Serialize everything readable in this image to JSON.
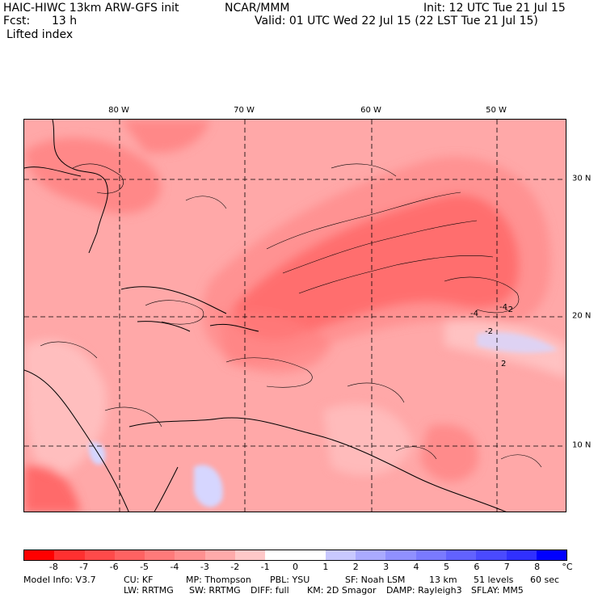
{
  "header": {
    "model": "HAIC-HIWC 13km ARW-GFS init",
    "org": "NCAR/MMM",
    "init": "Init: 12 UTC Tue 21 Jul 15",
    "fcst_label": "Fcst:",
    "fcst_value": "13 h",
    "valid": "Valid: 01 UTC Wed 22 Jul 15 (22 LST Tue 21 Jul 15)",
    "field": "Lifted index"
  },
  "map": {
    "lon_labels": [
      "80 W",
      "70 W",
      "60 W",
      "50 W"
    ],
    "lat_labels": [
      "30 N",
      "20 N",
      "10 N"
    ],
    "contour_labels": [
      "-4",
      "-2",
      "-2",
      "-4",
      "2"
    ],
    "colors": {
      "background": "#ffa8a8",
      "strong": "#ff5a5a",
      "moderate": "#ff7f7f",
      "weak": "#ffc8c8",
      "positive": "#d6d6ff",
      "neutral": "#ffffff"
    }
  },
  "colorbar": {
    "unit": "°C",
    "ticks": [
      "-8",
      "-7",
      "-6",
      "-5",
      "-4",
      "-3",
      "-2",
      "-1",
      "0",
      "1",
      "2",
      "3",
      "4",
      "5",
      "6",
      "7",
      "8"
    ],
    "colors": [
      "#ff0000",
      "#ff3030",
      "#ff4a4a",
      "#ff6262",
      "#ff7a7a",
      "#ff9090",
      "#ffaaaa",
      "#ffc8c8",
      "#ffffff",
      "#ffffff",
      "#c8c8ff",
      "#aaaaff",
      "#9090ff",
      "#7a7aff",
      "#6262ff",
      "#4a4aff",
      "#3030ff",
      "#0000ff"
    ]
  },
  "model_info": {
    "line1": [
      "Model Info: V3.7",
      "CU: KF",
      "MP: Thompson",
      "PBL: YSU",
      "SF: Noah LSM",
      "13 km",
      "51 levels",
      "60 sec"
    ],
    "line2": [
      "LW: RRTMG",
      "SW: RRTMG",
      "DIFF: full",
      "KM: 2D Smagor",
      "DAMP: Rayleigh3",
      "SFLAY: MM5"
    ]
  }
}
